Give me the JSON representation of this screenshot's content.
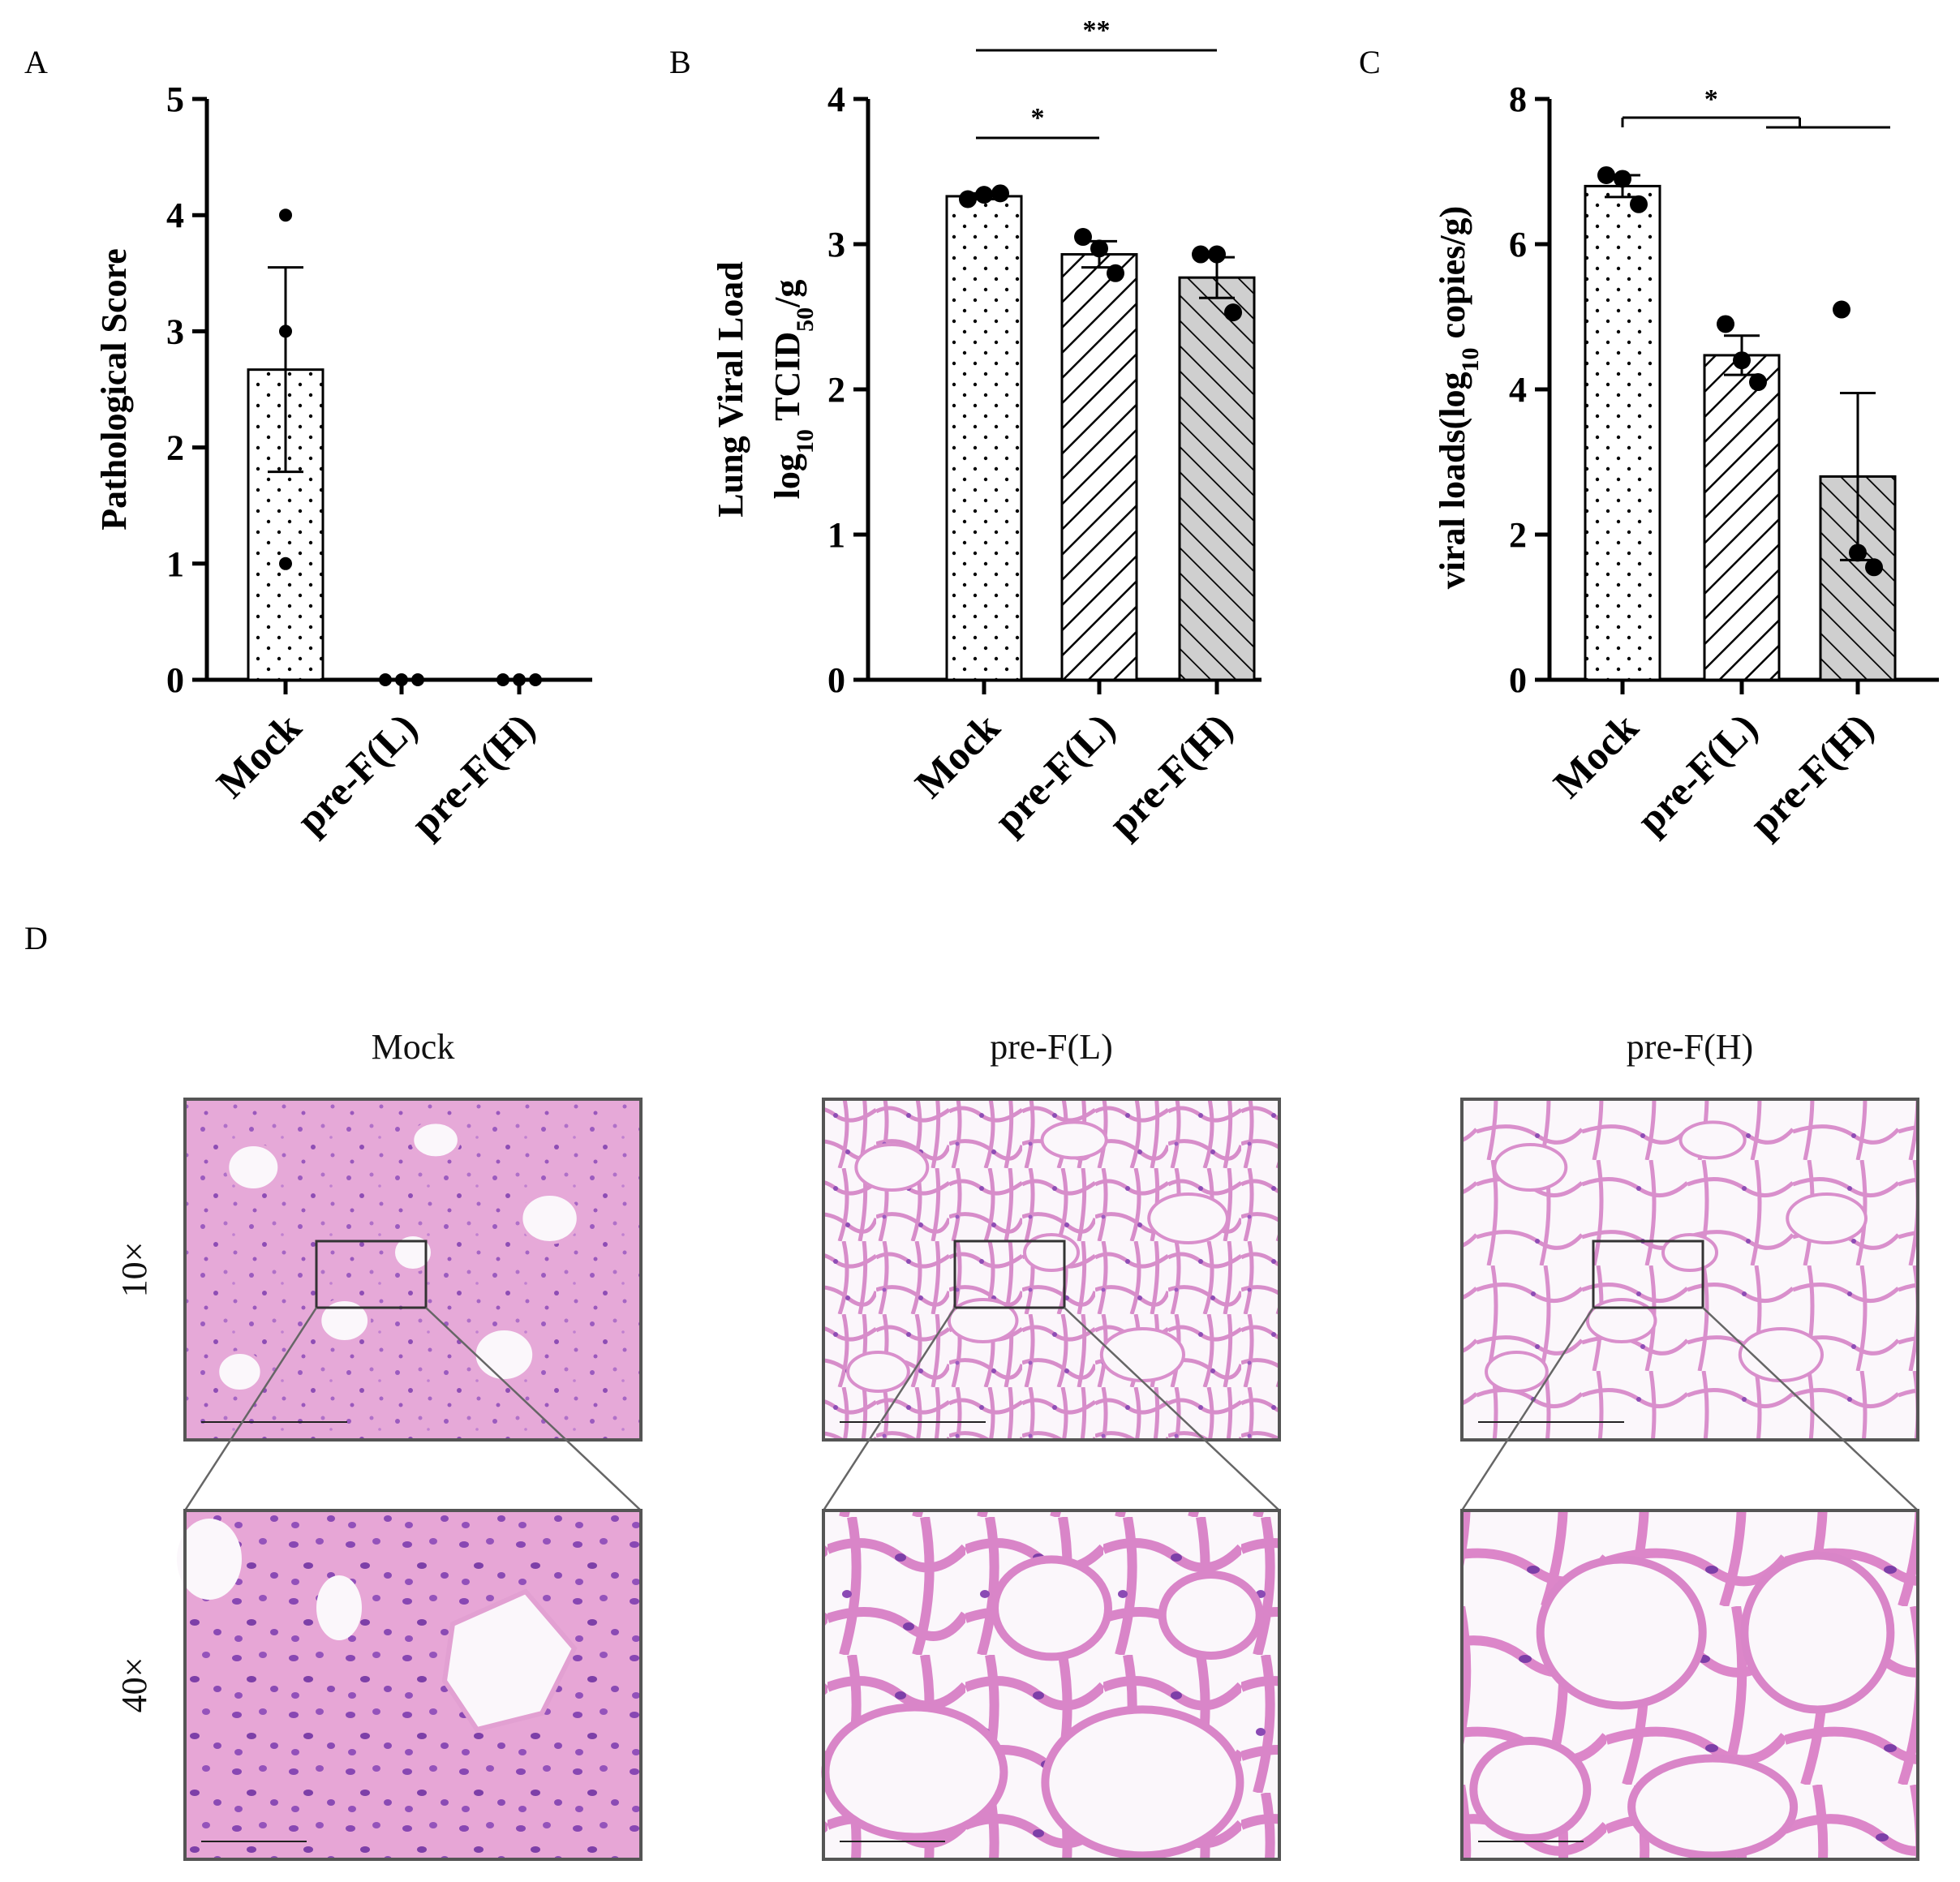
{
  "chart_data": [
    {
      "panel": "A",
      "type": "bar",
      "ylabel": "Pathological Score",
      "categories": [
        "Mock",
        "pre-F(L)",
        "pre-F(H)"
      ],
      "values": [
        2.67,
        0,
        0
      ],
      "sem": [
        0.88,
        0,
        0
      ],
      "points": [
        [
          4,
          3,
          1
        ],
        [
          0,
          0,
          0
        ],
        [
          0,
          0,
          0
        ]
      ],
      "ylim": [
        0,
        5
      ],
      "yticks": [
        "0",
        "1",
        "2",
        "3",
        "4",
        "5"
      ],
      "significance": []
    },
    {
      "panel": "B",
      "type": "bar",
      "ylabel_line1": "Lung Viral Load",
      "ylabel_line2": "log10 TCID50/g",
      "categories": [
        "Mock",
        "pre-F(L)",
        "pre-F(H)"
      ],
      "values": [
        3.33,
        2.93,
        2.77
      ],
      "sem": [
        0.02,
        0.09,
        0.14
      ],
      "points": [
        [
          3.31,
          3.34,
          3.35
        ],
        [
          3.05,
          2.97,
          2.8
        ],
        [
          2.93,
          2.93,
          2.53
        ]
      ],
      "ylim": [
        0,
        4
      ],
      "yticks": [
        "0",
        "1",
        "2",
        "3",
        "4"
      ],
      "significance": [
        {
          "from": 0,
          "to": 2,
          "label": "**"
        },
        {
          "from": 0,
          "to": 1,
          "label": "*"
        }
      ]
    },
    {
      "panel": "C",
      "type": "bar",
      "ylabel": "viral loads(log10 copies/g)",
      "categories": [
        "Mock",
        "pre-F(L)",
        "pre-F(H)"
      ],
      "values": [
        6.8,
        4.47,
        2.8
      ],
      "sem": [
        0.15,
        0.27,
        1.15
      ],
      "points": [
        [
          6.95,
          6.9,
          6.55
        ],
        [
          4.9,
          4.4,
          4.1
        ],
        [
          5.1,
          1.75,
          1.55
        ]
      ],
      "ylim": [
        0,
        8
      ],
      "yticks": [
        "0",
        "2",
        "4",
        "6",
        "8"
      ],
      "significance": [
        {
          "from": 0,
          "to_group": [
            1,
            2
          ],
          "label": "*"
        }
      ]
    }
  ],
  "panel_d": {
    "letter": "D",
    "columns": [
      "Mock",
      "pre-F(L)",
      "pre-F(H)"
    ],
    "rows": [
      "10×",
      "40×"
    ]
  },
  "colors": {
    "bar_fill_light": "#ffffff",
    "bar_fill_gray": "#d0d0d0",
    "ink": "#000000",
    "tissue_pink": "#e8a8d4",
    "tissue_purple": "#7a3f9e",
    "background_white": "#f6f2f6"
  }
}
